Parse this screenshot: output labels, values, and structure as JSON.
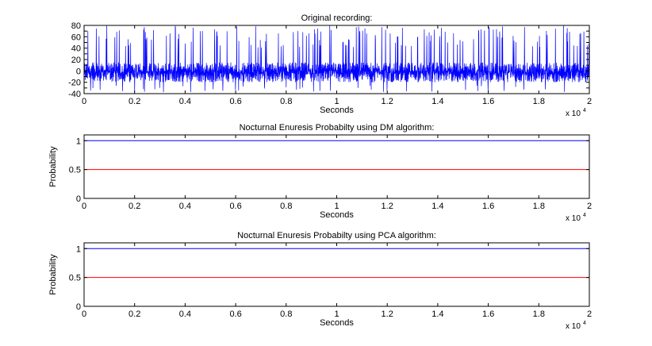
{
  "chart_data": [
    {
      "type": "line",
      "title": "Original recording:",
      "xlabel": "Seconds",
      "ylabel": "",
      "x_multiplier_label": "x 10",
      "x_multiplier_exp": "4",
      "xlim": [
        0,
        20000
      ],
      "ylim": [
        -40,
        80
      ],
      "xticks": [
        0,
        2000,
        4000,
        6000,
        8000,
        10000,
        12000,
        14000,
        16000,
        18000,
        20000
      ],
      "xtick_labels": [
        "0",
        "0.2",
        "0.4",
        "0.6",
        "0.8",
        "1",
        "1.2",
        "1.4",
        "1.6",
        "1.8",
        "2"
      ],
      "yticks": [
        -40,
        -30,
        -20,
        -10,
        0,
        10,
        20,
        30,
        40,
        50,
        60,
        70,
        80
      ],
      "ytick_labels": [
        "-40",
        "-20",
        "0",
        "20",
        "40",
        "60",
        "80"
      ],
      "grid": false,
      "series": [
        {
          "color": "#0000ff",
          "description": "dense oscillating signal: baseline band roughly -20 to 15, frequent spikes up to 60-80, occasional dips near -35",
          "band": [
            -20,
            15
          ],
          "spike_max": 80,
          "spike_min": -38
        }
      ]
    },
    {
      "type": "line",
      "title": "Nocturnal Enuresis Probabilty using DM algorithm:",
      "xlabel": "Seconds",
      "ylabel": "Probability",
      "x_multiplier_label": "x 10",
      "x_multiplier_exp": "4",
      "xlim": [
        0,
        20000
      ],
      "ylim": [
        0,
        1.1
      ],
      "xticks": [
        0,
        2000,
        4000,
        6000,
        8000,
        10000,
        12000,
        14000,
        16000,
        18000,
        20000
      ],
      "xtick_labels": [
        "0",
        "0.2",
        "0.4",
        "0.6",
        "0.8",
        "1",
        "1.2",
        "1.4",
        "1.6",
        "1.8",
        "2"
      ],
      "yticks": [
        0,
        0.5,
        1
      ],
      "ytick_labels": [
        "0",
        "0.5",
        "1"
      ],
      "grid": false,
      "series": [
        {
          "color": "#0000ff",
          "x": [
            0,
            20000
          ],
          "y": [
            1,
            1
          ]
        },
        {
          "color": "#ff0000",
          "x": [
            0,
            20000
          ],
          "y": [
            0.5,
            0.5
          ]
        }
      ]
    },
    {
      "type": "line",
      "title": "Nocturnal Enuresis Probabilty using PCA algorithm:",
      "xlabel": "Seconds",
      "ylabel": "Probability",
      "x_multiplier_label": "x 10",
      "x_multiplier_exp": "4",
      "xlim": [
        0,
        20000
      ],
      "ylim": [
        0,
        1.1
      ],
      "xticks": [
        0,
        2000,
        4000,
        6000,
        8000,
        10000,
        12000,
        14000,
        16000,
        18000,
        20000
      ],
      "xtick_labels": [
        "0",
        "0.2",
        "0.4",
        "0.6",
        "0.8",
        "1",
        "1.2",
        "1.4",
        "1.6",
        "1.8",
        "2"
      ],
      "yticks": [
        0,
        0.5,
        1
      ],
      "ytick_labels": [
        "0",
        "0.5",
        "1"
      ],
      "grid": false,
      "series": [
        {
          "color": "#0000ff",
          "x": [
            0,
            20000
          ],
          "y": [
            1,
            1
          ]
        },
        {
          "color": "#ff0000",
          "x": [
            0,
            20000
          ],
          "y": [
            0.5,
            0.5
          ]
        }
      ]
    }
  ]
}
